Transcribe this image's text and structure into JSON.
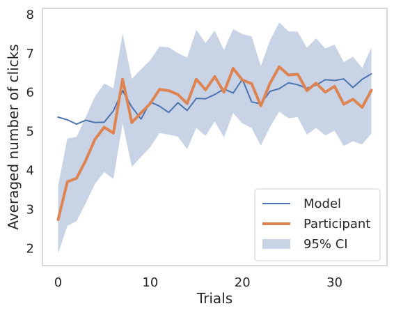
{
  "chart_data": {
    "type": "line",
    "title": "",
    "xlabel": "Trials",
    "ylabel": "Averaged number of clicks",
    "xlim": [
      -1.7,
      35.7
    ],
    "ylim": [
      1.55,
      8.15
    ],
    "xticks": [
      0,
      10,
      20,
      30
    ],
    "yticks": [
      2,
      3,
      4,
      5,
      6,
      7,
      8
    ],
    "grid": false,
    "legend_position": "lower-right",
    "x": [
      0,
      1,
      2,
      3,
      4,
      5,
      6,
      7,
      8,
      9,
      10,
      11,
      12,
      13,
      14,
      15,
      16,
      17,
      18,
      19,
      20,
      21,
      22,
      23,
      24,
      25,
      26,
      27,
      28,
      29,
      30,
      31,
      32,
      33,
      34
    ],
    "series": [
      {
        "name": "Model",
        "color": "#4c72b0",
        "values": [
          5.36,
          5.29,
          5.18,
          5.28,
          5.22,
          5.23,
          5.52,
          6.04,
          5.62,
          5.31,
          5.75,
          5.64,
          5.48,
          5.73,
          5.53,
          5.84,
          5.83,
          5.94,
          6.08,
          5.98,
          6.33,
          5.75,
          5.7,
          6.02,
          6.09,
          6.24,
          6.19,
          6.1,
          6.18,
          6.32,
          6.3,
          6.34,
          6.12,
          6.33,
          6.47
        ]
      },
      {
        "name": "Participant",
        "color": "#dd8452",
        "values": [
          2.73,
          3.7,
          3.79,
          4.25,
          4.79,
          5.1,
          4.95,
          6.33,
          5.22,
          5.47,
          5.71,
          6.07,
          6.04,
          5.94,
          5.71,
          6.33,
          6.06,
          6.4,
          6.0,
          6.61,
          6.31,
          6.22,
          5.65,
          6.23,
          6.65,
          6.44,
          6.46,
          6.04,
          6.23,
          6.0,
          6.15,
          5.69,
          5.82,
          5.61,
          6.05
        ]
      }
    ],
    "band": {
      "name": "95% CI",
      "color": "#c8d3e6",
      "lower": [
        1.86,
        2.57,
        2.69,
        3.15,
        3.65,
        3.95,
        3.77,
        5.2,
        4.08,
        4.34,
        4.59,
        4.95,
        4.91,
        4.86,
        4.54,
        5.08,
        4.88,
        5.25,
        4.84,
        5.46,
        5.2,
        5.08,
        4.63,
        5.11,
        5.5,
        5.33,
        5.36,
        4.91,
        5.08,
        4.89,
        5.01,
        4.62,
        4.74,
        4.66,
        4.94
      ],
      "upper": [
        3.6,
        4.81,
        4.85,
        5.36,
        5.89,
        6.22,
        6.1,
        7.51,
        6.34,
        6.59,
        6.82,
        7.17,
        7.15,
        7.0,
        6.89,
        7.6,
        7.26,
        7.58,
        7.08,
        7.62,
        7.49,
        7.43,
        6.67,
        7.33,
        7.79,
        7.56,
        7.55,
        7.14,
        7.38,
        7.12,
        7.22,
        6.77,
        6.91,
        6.62,
        7.14
      ]
    }
  }
}
